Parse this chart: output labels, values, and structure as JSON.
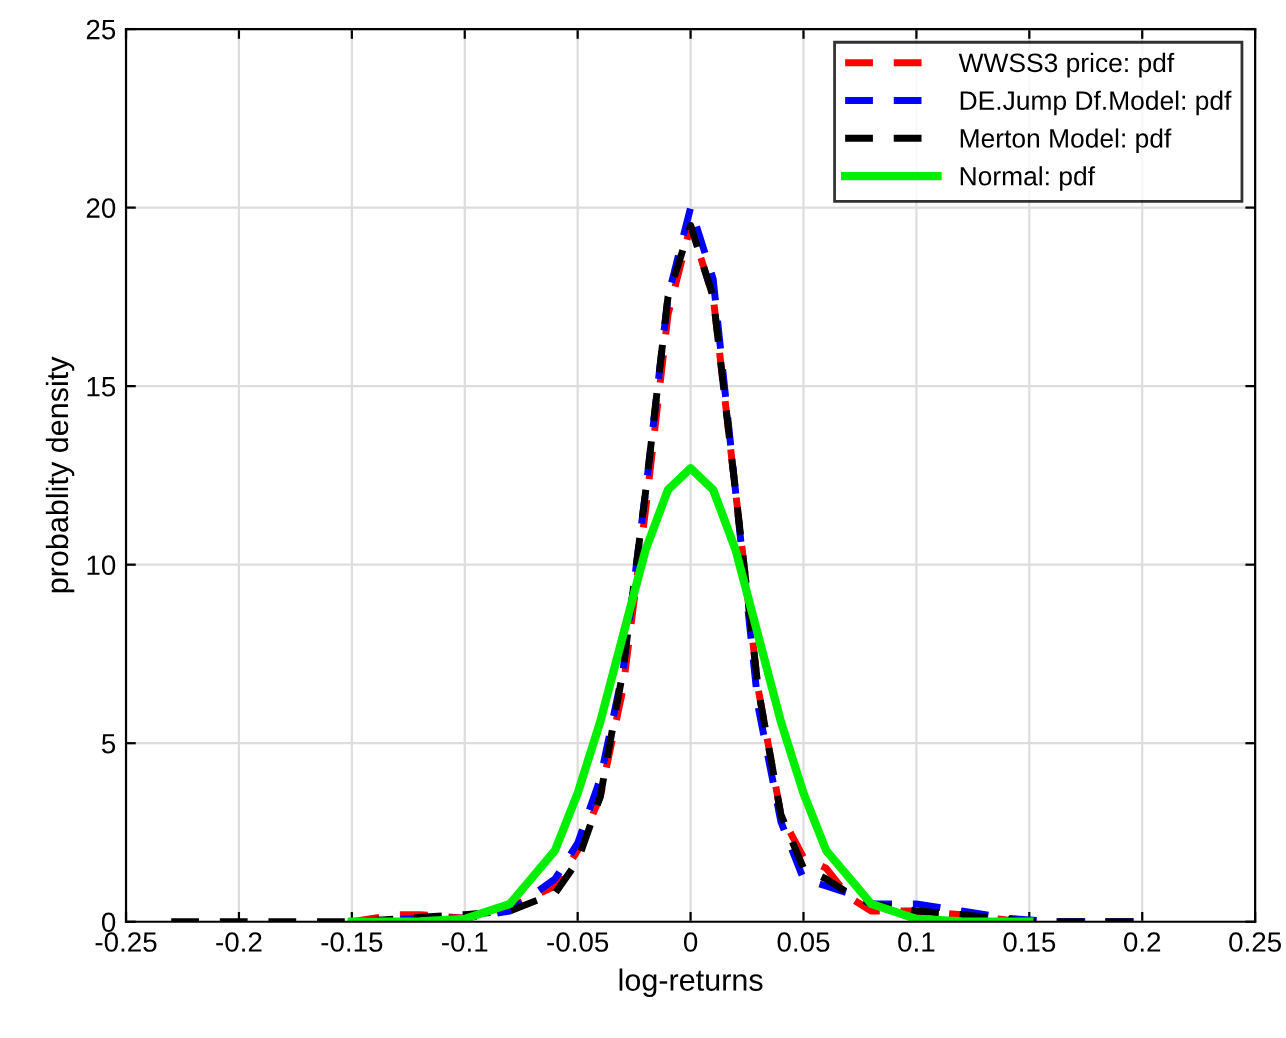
{
  "chart_data": {
    "type": "line",
    "xlabel": "log-returns",
    "ylabel": "probablity density",
    "xlim": [
      -0.25,
      0.25
    ],
    "ylim": [
      0,
      25
    ],
    "xticks": [
      -0.25,
      -0.2,
      -0.15,
      -0.1,
      -0.05,
      0,
      0.05,
      0.1,
      0.15,
      0.2,
      0.25
    ],
    "yticks": [
      0,
      5,
      10,
      15,
      20,
      25
    ],
    "grid": true,
    "legend": "top right",
    "series": [
      {
        "name": "WWSS3 price: pdf",
        "color": "#ff0000",
        "line_style": "dashed",
        "x": [
          -0.15,
          -0.13,
          -0.12,
          -0.1,
          -0.08,
          -0.06,
          -0.05,
          -0.04,
          -0.03,
          -0.02,
          -0.01,
          0,
          0.01,
          0.02,
          0.03,
          0.04,
          0.05,
          0.06,
          0.07,
          0.08,
          0.1,
          0.12,
          0.14,
          0.15
        ],
        "values": [
          0,
          0.2,
          0.2,
          0.1,
          0.4,
          1.0,
          2.0,
          3.5,
          6.5,
          11.5,
          17,
          19.5,
          17.5,
          12,
          6.5,
          3.0,
          1.8,
          1.5,
          0.7,
          0.3,
          0.3,
          0.2,
          0.05,
          0
        ]
      },
      {
        "name": "DE.Jump Df.Model: pdf",
        "color": "#0000ff",
        "line_style": "dashed",
        "x": [
          -0.15,
          -0.12,
          -0.1,
          -0.08,
          -0.06,
          -0.05,
          -0.04,
          -0.03,
          -0.02,
          -0.01,
          0,
          0.01,
          0.02,
          0.03,
          0.04,
          0.05,
          0.06,
          0.07,
          0.08,
          0.1,
          0.12,
          0.14,
          0.16,
          0.2
        ],
        "values": [
          0,
          0.1,
          0.1,
          0.3,
          1.2,
          2.2,
          4,
          7,
          12,
          17.5,
          20,
          18,
          12,
          6,
          2.8,
          1.2,
          1.0,
          0.8,
          0.5,
          0.5,
          0.3,
          0.1,
          0,
          0
        ]
      },
      {
        "name": "Merton Model: pdf",
        "color": "#000000",
        "line_style": "dashed",
        "x": [
          -0.23,
          -0.15,
          -0.1,
          -0.08,
          -0.06,
          -0.05,
          -0.04,
          -0.03,
          -0.02,
          -0.01,
          0,
          0.01,
          0.02,
          0.03,
          0.04,
          0.05,
          0.06,
          0.07,
          0.08,
          0.1,
          0.12,
          0.15,
          0.2
        ],
        "values": [
          0,
          0,
          0.2,
          0.3,
          0.8,
          1.7,
          3.5,
          7,
          12,
          17.5,
          19.5,
          17.5,
          12,
          6.5,
          3,
          1.5,
          1.2,
          0.8,
          0.5,
          0.3,
          0.2,
          0,
          0
        ]
      },
      {
        "name": "Normal: pdf",
        "color": "#00ee00",
        "line_style": "solid",
        "x": [
          -0.15,
          -0.12,
          -0.1,
          -0.08,
          -0.06,
          -0.05,
          -0.04,
          -0.03,
          -0.02,
          -0.01,
          0,
          0.01,
          0.02,
          0.03,
          0.04,
          0.05,
          0.06,
          0.08,
          0.1,
          0.12,
          0.15
        ],
        "values": [
          0,
          0.01,
          0.08,
          0.5,
          2.0,
          3.6,
          5.6,
          8.0,
          10.4,
          12.1,
          12.7,
          12.1,
          10.4,
          8.0,
          5.6,
          3.6,
          2.0,
          0.5,
          0.08,
          0.01,
          0
        ]
      }
    ]
  }
}
